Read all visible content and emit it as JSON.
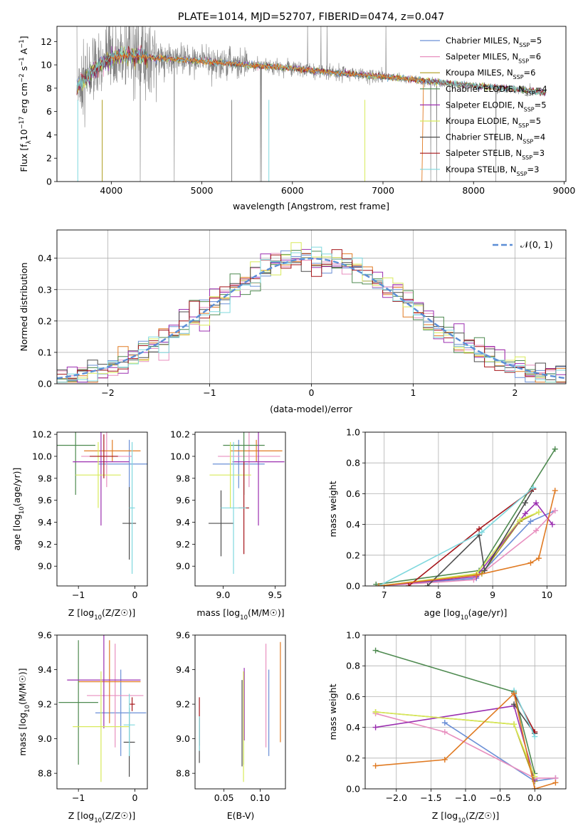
{
  "colors": [
    "#6a8fd6",
    "#e88fbf",
    "#ad9c1f",
    "#4e8a50",
    "#9b2fb0",
    "#d8ea5a",
    "#4d4d4d",
    "#a5151a",
    "#7fd8de",
    "#808080",
    "#e07a22"
  ],
  "chart_data": [
    {
      "id": "spectrum",
      "type": "line",
      "title": "PLATE=1014, MJD=52707, FIBERID=0474, z=0.047",
      "xlabel": "wavelength [Angstrom, rest frame]",
      "ylabel": "Flux [f_λ10^-17 erg cm^-2 s^-1 A^-1]",
      "xlim": [
        3400,
        9020
      ],
      "ylim": [
        0,
        13.3
      ],
      "xticks": [
        4000,
        5000,
        6000,
        7000,
        8000,
        9000
      ],
      "yticks": [
        0,
        2,
        4,
        6,
        8,
        10,
        12
      ],
      "legend_position": "top-right",
      "series": [
        {
          "name": "Chabrier MILES, N_SSP=5"
        },
        {
          "name": "Salpeter MILES, N_SSP=6"
        },
        {
          "name": "Kroupa MILES, N_SSP=6"
        },
        {
          "name": "Chabrier ELODIE, N_SSP=4"
        },
        {
          "name": "Salpeter ELODIE, N_SSP=5"
        },
        {
          "name": "Kroupa ELODIE, N_SSP=5"
        },
        {
          "name": "Chabrier STELIB, N_SSP=4"
        },
        {
          "name": "Salpeter STELIB, N_SSP=3"
        },
        {
          "name": "Kroupa STELIB, N_SSP=3"
        }
      ],
      "data_spectrum_envelope": {
        "x": [
          3600,
          3800,
          4000,
          4200,
          4500,
          5000,
          5500,
          6000,
          6500,
          7000,
          7500,
          8000,
          8500,
          8800
        ],
        "y": [
          8.0,
          9.5,
          10.6,
          10.8,
          10.6,
          10.3,
          10.0,
          9.7,
          9.3,
          9.0,
          8.6,
          8.2,
          7.9,
          7.6
        ]
      }
    },
    {
      "id": "residuals",
      "type": "line",
      "xlabel": "(data-model)/error",
      "ylabel": "Normed distribution",
      "xlim": [
        -2.5,
        2.5
      ],
      "ylim": [
        0,
        0.49
      ],
      "xticks": [
        -2,
        -1,
        0,
        1,
        2
      ],
      "yticks": [
        0.0,
        0.1,
        0.2,
        0.3,
        0.4
      ],
      "grid": true,
      "legend_position": "top-right",
      "reference_curve": {
        "name": "𝒩(0, 1)",
        "mean": 0,
        "sigma": 1
      }
    },
    {
      "id": "age_vs_Z",
      "type": "scatter",
      "xlabel": "Z [log10(Z/Z☉)]",
      "ylabel": "age [log10(age/yr)]",
      "xlim": [
        -1.38,
        0.22
      ],
      "ylim": [
        8.82,
        10.22
      ],
      "xticks": [
        -1,
        0
      ],
      "yticks": [
        9.0,
        9.2,
        9.4,
        9.6,
        9.8,
        10.0,
        10.2
      ],
      "points": [
        {
          "x": -0.1,
          "y": 9.93,
          "xerr": 0.55,
          "yerr": 0.22
        },
        {
          "x": -0.5,
          "y": 10.0,
          "xerr": 0.45,
          "yerr": 0.28
        },
        {
          "x": -0.4,
          "y": 10.05,
          "xerr": 0.5,
          "yerr": 0.1
        },
        {
          "x": -1.05,
          "y": 10.1,
          "xerr": 0.35,
          "yerr": 0.45
        },
        {
          "x": -0.6,
          "y": 9.95,
          "xerr": 0.5,
          "yerr": 0.58
        },
        {
          "x": -0.65,
          "y": 9.83,
          "xerr": 0.4,
          "yerr": 0.3
        },
        {
          "x": -0.1,
          "y": 9.39,
          "xerr": 0.12,
          "yerr": 0.33
        },
        {
          "x": -0.55,
          "y": 10.0,
          "xerr": 0.25,
          "yerr": 0.2
        },
        {
          "x": -0.05,
          "y": 9.53,
          "xerr": 0.05,
          "yerr": 0.6
        }
      ]
    },
    {
      "id": "age_vs_mass",
      "type": "scatter",
      "xlabel": "mass [log10(M/M☉)]",
      "ylabel": "",
      "xlim": [
        8.73,
        9.6
      ],
      "ylim": [
        8.82,
        10.22
      ],
      "xticks": [
        9.0,
        9.5
      ],
      "yticks": [
        9.0,
        9.2,
        9.4,
        9.6,
        9.8,
        10.0,
        10.2
      ],
      "points": [
        {
          "x": 9.15,
          "y": 9.93,
          "xerr": 0.25,
          "yerr": 0.22
        },
        {
          "x": 9.25,
          "y": 10.0,
          "xerr": 0.3,
          "yerr": 0.28
        },
        {
          "x": 9.32,
          "y": 10.05,
          "xerr": 0.25,
          "yerr": 0.1
        },
        {
          "x": 9.2,
          "y": 10.1,
          "xerr": 0.2,
          "yerr": 0.45
        },
        {
          "x": 9.34,
          "y": 9.95,
          "xerr": 0.25,
          "yerr": 0.58
        },
        {
          "x": 9.07,
          "y": 9.83,
          "xerr": 0.2,
          "yerr": 0.3
        },
        {
          "x": 8.98,
          "y": 9.39,
          "xerr": 0.12,
          "yerr": 0.3
        },
        {
          "x": 9.2,
          "y": 9.53,
          "xerr": 0.05,
          "yerr": 0.42
        },
        {
          "x": 9.1,
          "y": 9.53,
          "xerr": 0.12,
          "yerr": 0.6
        }
      ]
    },
    {
      "id": "massweight_vs_age",
      "type": "line",
      "xlabel": "age [log10(age/yr)]",
      "ylabel": "mass weight",
      "xlim": [
        6.65,
        10.35
      ],
      "ylim": [
        0,
        1.0
      ],
      "xticks": [
        7,
        8,
        9,
        10
      ],
      "yticks": [
        0.0,
        0.2,
        0.4,
        0.6,
        0.8,
        1.0
      ],
      "grid": true,
      "series": [
        {
          "x": [
            6.9,
            8.7,
            9.7,
            10.15
          ],
          "y": [
            0.0,
            0.05,
            0.42,
            0.49
          ]
        },
        {
          "x": [
            6.9,
            8.65,
            9.8,
            10.15
          ],
          "y": [
            0.0,
            0.04,
            0.36,
            0.49
          ]
        },
        {
          "x": [
            6.9,
            8.8,
            9.5,
            9.85
          ],
          "y": [
            0.0,
            0.08,
            0.42,
            0.48
          ]
        },
        {
          "x": [
            6.85,
            8.75,
            10.15
          ],
          "y": [
            0.01,
            0.1,
            0.89
          ]
        },
        {
          "x": [
            6.9,
            8.7,
            9.6,
            9.8,
            10.1
          ],
          "y": [
            0.0,
            0.06,
            0.47,
            0.54,
            0.4
          ]
        },
        {
          "x": [
            6.9,
            8.7,
            9.5,
            9.85
          ],
          "y": [
            0.0,
            0.08,
            0.43,
            0.48
          ]
        },
        {
          "x": [
            7.8,
            8.75,
            8.85,
            9.6,
            9.75
          ],
          "y": [
            0.0,
            0.33,
            0.1,
            0.54,
            0.63
          ]
        },
        {
          "x": [
            7.45,
            8.75,
            9.75
          ],
          "y": [
            0.0,
            0.37,
            0.63
          ]
        },
        {
          "x": [
            6.9,
            8.8,
            9.75
          ],
          "y": [
            0.0,
            0.35,
            0.64
          ]
        },
        {
          "x": [
            6.9,
            8.7,
            9.7,
            9.85,
            10.15
          ],
          "y": [
            0.0,
            0.07,
            0.15,
            0.18,
            0.62
          ]
        }
      ]
    },
    {
      "id": "mass_vs_Z",
      "type": "scatter",
      "xlabel": "Z [log10(Z/Z☉)]",
      "ylabel": "mass [log10(M/M☉)]",
      "xlim": [
        -1.38,
        0.22
      ],
      "ylim": [
        8.71,
        9.6
      ],
      "xticks": [
        -1,
        0
      ],
      "yticks": [
        8.8,
        9.0,
        9.2,
        9.4,
        9.6
      ],
      "points": [
        {
          "x": -0.25,
          "y": 9.15,
          "xerr": 0.45,
          "yerr": 0.25
        },
        {
          "x": -0.35,
          "y": 9.25,
          "xerr": 0.5,
          "yerr": 0.3
        },
        {
          "x": -0.45,
          "y": 9.33,
          "xerr": 0.55,
          "yerr": 0.24
        },
        {
          "x": -1.0,
          "y": 9.21,
          "xerr": 0.35,
          "yerr": 0.36
        },
        {
          "x": -0.55,
          "y": 9.34,
          "xerr": 0.65,
          "yerr": 0.28
        },
        {
          "x": -0.6,
          "y": 9.07,
          "xerr": 0.5,
          "yerr": 0.32
        },
        {
          "x": -0.1,
          "y": 8.98,
          "xerr": 0.1,
          "yerr": 0.2
        },
        {
          "x": -0.05,
          "y": 9.2,
          "xerr": 0.05,
          "yerr": 0.04
        },
        {
          "x": -0.1,
          "y": 9.08,
          "xerr": 0.1,
          "yerr": 0.18
        }
      ]
    },
    {
      "id": "mass_vs_EBV",
      "type": "scatter",
      "xlabel": "E(B-V)",
      "ylabel": "",
      "xlim": [
        0.01,
        0.135
      ],
      "ylim": [
        8.71,
        9.6
      ],
      "xticks": [
        0.05,
        0.1
      ],
      "yticks": [
        8.8,
        9.0,
        9.2,
        9.4,
        9.6
      ],
      "points": [
        {
          "x": 0.112,
          "y": 9.15,
          "yerr": 0.25
        },
        {
          "x": 0.108,
          "y": 9.25,
          "yerr": 0.3
        },
        {
          "x": 0.077,
          "y": 9.1,
          "yerr": 0.25
        },
        {
          "x": 0.075,
          "y": 9.09,
          "yerr": 0.25
        },
        {
          "x": 0.078,
          "y": 9.2,
          "yerr": 0.21
        },
        {
          "x": 0.077,
          "y": 9.07,
          "yerr": 0.32
        },
        {
          "x": 0.016,
          "y": 8.99,
          "yerr": 0.13
        },
        {
          "x": 0.016,
          "y": 9.1,
          "yerr": 0.14
        },
        {
          "x": 0.016,
          "y": 9.03,
          "yerr": 0.1
        },
        {
          "x": 0.128,
          "y": 9.27,
          "yerr": 0.29
        }
      ]
    },
    {
      "id": "massweight_vs_Z",
      "type": "line",
      "xlabel": "Z [log10(Z/Z☉)]",
      "ylabel": "mass weight",
      "xlim": [
        -2.45,
        0.45
      ],
      "ylim": [
        0,
        1.0
      ],
      "xticks": [
        -2.0,
        -1.5,
        -1.0,
        -0.5,
        0.0
      ],
      "yticks": [
        0.0,
        0.2,
        0.4,
        0.6,
        0.8,
        1.0
      ],
      "grid": true,
      "series": [
        {
          "x": [
            -1.3,
            0.0,
            0.3
          ],
          "y": [
            0.43,
            0.05,
            0.07
          ]
        },
        {
          "x": [
            -2.3,
            -1.3,
            0.0,
            0.3
          ],
          "y": [
            0.49,
            0.37,
            0.07,
            0.07
          ]
        },
        {
          "x": [
            -2.3,
            -0.3,
            0.0
          ],
          "y": [
            0.5,
            0.42,
            0.05
          ]
        },
        {
          "x": [
            -2.3,
            -0.3,
            0.0
          ],
          "y": [
            0.9,
            0.63,
            0.1
          ]
        },
        {
          "x": [
            -2.3,
            -0.3,
            0.0
          ],
          "y": [
            0.4,
            0.54,
            0.06
          ]
        },
        {
          "x": [
            -2.3,
            -0.3,
            0.0
          ],
          "y": [
            0.5,
            0.42,
            0.08
          ]
        },
        {
          "x": [
            -0.3,
            0.0
          ],
          "y": [
            0.55,
            0.36
          ]
        },
        {
          "x": [
            -0.3,
            0.0
          ],
          "y": [
            0.62,
            0.37
          ]
        },
        {
          "x": [
            -0.3,
            0.0
          ],
          "y": [
            0.64,
            0.34
          ]
        },
        {
          "x": [
            -2.3,
            -1.3,
            -0.3,
            0.0,
            0.3
          ],
          "y": [
            0.15,
            0.19,
            0.62,
            0.0,
            0.04
          ]
        }
      ]
    }
  ]
}
